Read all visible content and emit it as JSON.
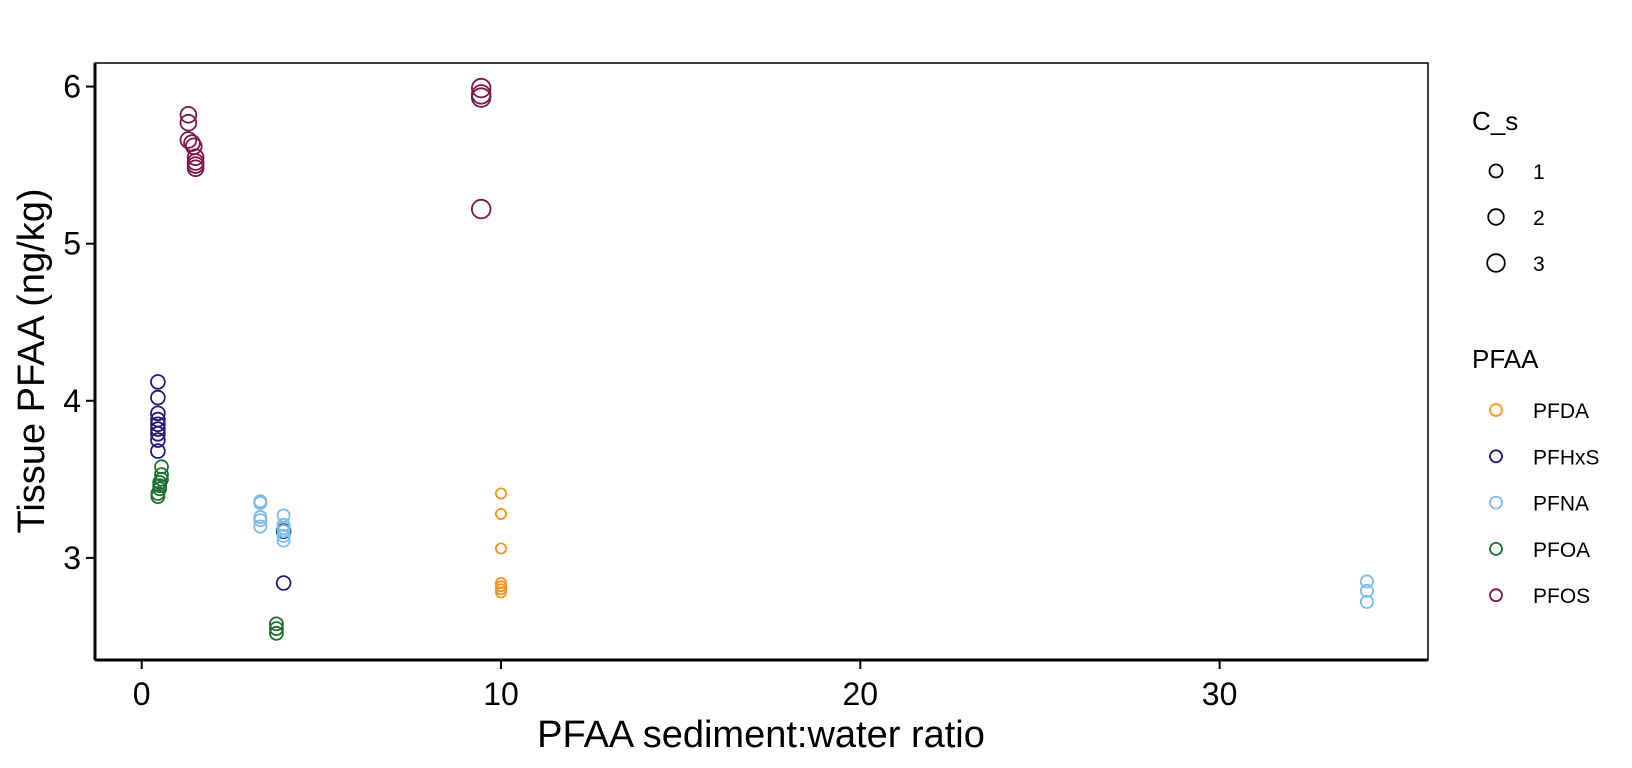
{
  "chart_data": {
    "type": "scatter",
    "title": "",
    "xlabel": "PFAA sediment:water ratio",
    "ylabel": "Tissue PFAA (ng/kg)",
    "xlim": [
      -1.3,
      35.8
    ],
    "ylim": [
      2.35,
      6.15
    ],
    "x_ticks": [
      0,
      10,
      20,
      30
    ],
    "y_ticks": [
      3,
      4,
      5,
      6
    ],
    "grid": false,
    "size_legend": {
      "title": "C_s",
      "entries": [
        {
          "label": "1",
          "value": 1
        },
        {
          "label": "2",
          "value": 2
        },
        {
          "label": "3",
          "value": 3
        }
      ]
    },
    "color_legend": {
      "title": "PFAA",
      "position": "right"
    },
    "series": [
      {
        "name": "PFDA",
        "color": "#F7941D",
        "points": [
          {
            "x": 10.0,
            "y": 3.41,
            "size": 0.3
          },
          {
            "x": 10.0,
            "y": 3.28,
            "size": 0.3
          },
          {
            "x": 10.0,
            "y": 3.06,
            "size": 0.3
          },
          {
            "x": 10.0,
            "y": 2.84,
            "size": 0.3
          },
          {
            "x": 10.0,
            "y": 2.82,
            "size": 0.3
          },
          {
            "x": 10.0,
            "y": 2.8,
            "size": 0.3
          },
          {
            "x": 10.0,
            "y": 2.78,
            "size": 0.3
          }
        ]
      },
      {
        "name": "PFHxS",
        "color": "#221C77",
        "points": [
          {
            "x": 0.45,
            "y": 4.12,
            "size": 1.3
          },
          {
            "x": 0.45,
            "y": 4.02,
            "size": 1.3
          },
          {
            "x": 0.45,
            "y": 3.92,
            "size": 1.3
          },
          {
            "x": 0.45,
            "y": 3.88,
            "size": 1.3
          },
          {
            "x": 0.45,
            "y": 3.85,
            "size": 1.3
          },
          {
            "x": 0.45,
            "y": 3.82,
            "size": 1.3
          },
          {
            "x": 0.45,
            "y": 3.79,
            "size": 1.3
          },
          {
            "x": 0.45,
            "y": 3.75,
            "size": 1.3
          },
          {
            "x": 0.45,
            "y": 3.68,
            "size": 1.3
          },
          {
            "x": 3.95,
            "y": 3.17,
            "size": 1.3
          },
          {
            "x": 3.95,
            "y": 2.84,
            "size": 1.3
          }
        ]
      },
      {
        "name": "PFNA",
        "color": "#7CBCE8",
        "points": [
          {
            "x": 3.3,
            "y": 3.36,
            "size": 0.75
          },
          {
            "x": 3.3,
            "y": 3.35,
            "size": 0.75
          },
          {
            "x": 3.3,
            "y": 3.26,
            "size": 0.75
          },
          {
            "x": 3.3,
            "y": 3.24,
            "size": 0.75
          },
          {
            "x": 3.3,
            "y": 3.2,
            "size": 0.75
          },
          {
            "x": 3.95,
            "y": 3.27,
            "size": 0.75
          },
          {
            "x": 3.95,
            "y": 3.21,
            "size": 0.75
          },
          {
            "x": 3.95,
            "y": 3.19,
            "size": 0.75
          },
          {
            "x": 3.95,
            "y": 3.17,
            "size": 0.75
          },
          {
            "x": 3.95,
            "y": 3.14,
            "size": 0.75
          },
          {
            "x": 3.95,
            "y": 3.11,
            "size": 0.75
          },
          {
            "x": 34.1,
            "y": 2.85,
            "size": 0.75
          },
          {
            "x": 34.1,
            "y": 2.79,
            "size": 0.75
          },
          {
            "x": 34.1,
            "y": 2.72,
            "size": 0.75
          }
        ]
      },
      {
        "name": "PFOA",
        "color": "#1E7031",
        "points": [
          {
            "x": 0.55,
            "y": 3.58,
            "size": 1.0
          },
          {
            "x": 0.55,
            "y": 3.53,
            "size": 1.0
          },
          {
            "x": 0.55,
            "y": 3.5,
            "size": 1.0
          },
          {
            "x": 0.5,
            "y": 3.48,
            "size": 1.0
          },
          {
            "x": 0.5,
            "y": 3.46,
            "size": 1.0
          },
          {
            "x": 0.5,
            "y": 3.44,
            "size": 1.0
          },
          {
            "x": 0.45,
            "y": 3.41,
            "size": 1.0
          },
          {
            "x": 0.45,
            "y": 3.39,
            "size": 1.0
          },
          {
            "x": 3.75,
            "y": 2.58,
            "size": 1.0
          },
          {
            "x": 3.75,
            "y": 2.55,
            "size": 1.0
          },
          {
            "x": 3.75,
            "y": 2.52,
            "size": 1.0
          }
        ]
      },
      {
        "name": "PFOS",
        "color": "#7A1848",
        "points": [
          {
            "x": 1.3,
            "y": 5.82,
            "size": 2.1
          },
          {
            "x": 1.3,
            "y": 5.77,
            "size": 2.1
          },
          {
            "x": 1.3,
            "y": 5.66,
            "size": 2.1
          },
          {
            "x": 1.4,
            "y": 5.64,
            "size": 2.1
          },
          {
            "x": 1.45,
            "y": 5.62,
            "size": 2.1
          },
          {
            "x": 1.5,
            "y": 5.55,
            "size": 2.1
          },
          {
            "x": 1.5,
            "y": 5.52,
            "size": 2.1
          },
          {
            "x": 1.5,
            "y": 5.5,
            "size": 2.1
          },
          {
            "x": 1.5,
            "y": 5.48,
            "size": 2.1
          },
          {
            "x": 9.45,
            "y": 5.99,
            "size": 3.5
          },
          {
            "x": 9.45,
            "y": 5.95,
            "size": 3.5
          },
          {
            "x": 9.45,
            "y": 5.93,
            "size": 3.5
          },
          {
            "x": 9.45,
            "y": 5.22,
            "size": 3.5
          }
        ]
      }
    ]
  }
}
